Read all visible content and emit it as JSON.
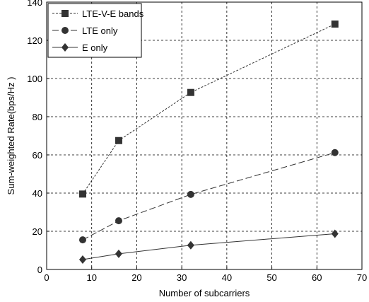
{
  "chart_data": {
    "type": "line",
    "xlabel": "Number of subcarriers",
    "ylabel": "Sum-weighted Rate(bps/Hz )",
    "xlim": [
      0,
      70
    ],
    "ylim": [
      0,
      140
    ],
    "xticks": [
      "0",
      "10",
      "20",
      "30",
      "40",
      "50",
      "60",
      "70"
    ],
    "yticks": [
      "0",
      "20",
      "40",
      "60",
      "80",
      "100",
      "120",
      "140"
    ],
    "grid": true,
    "legend_position": "top-left",
    "series": [
      {
        "name": "LTE-V-E bands",
        "x": [
          8,
          16,
          32,
          64
        ],
        "values": [
          39.5,
          67.5,
          92.7,
          128.5
        ],
        "marker": "square",
        "dash": "short-dash",
        "color": "#333333"
      },
      {
        "name": "LTE only",
        "x": [
          8,
          16,
          32,
          64
        ],
        "values": [
          15.5,
          25.5,
          39.3,
          61.2
        ],
        "marker": "circle",
        "dash": "long-dash",
        "color": "#333333"
      },
      {
        "name": "E only",
        "x": [
          8,
          16,
          32,
          64
        ],
        "values": [
          5.2,
          8.2,
          12.7,
          18.7
        ],
        "marker": "diamond",
        "dash": "solid",
        "color": "#333333"
      }
    ]
  }
}
